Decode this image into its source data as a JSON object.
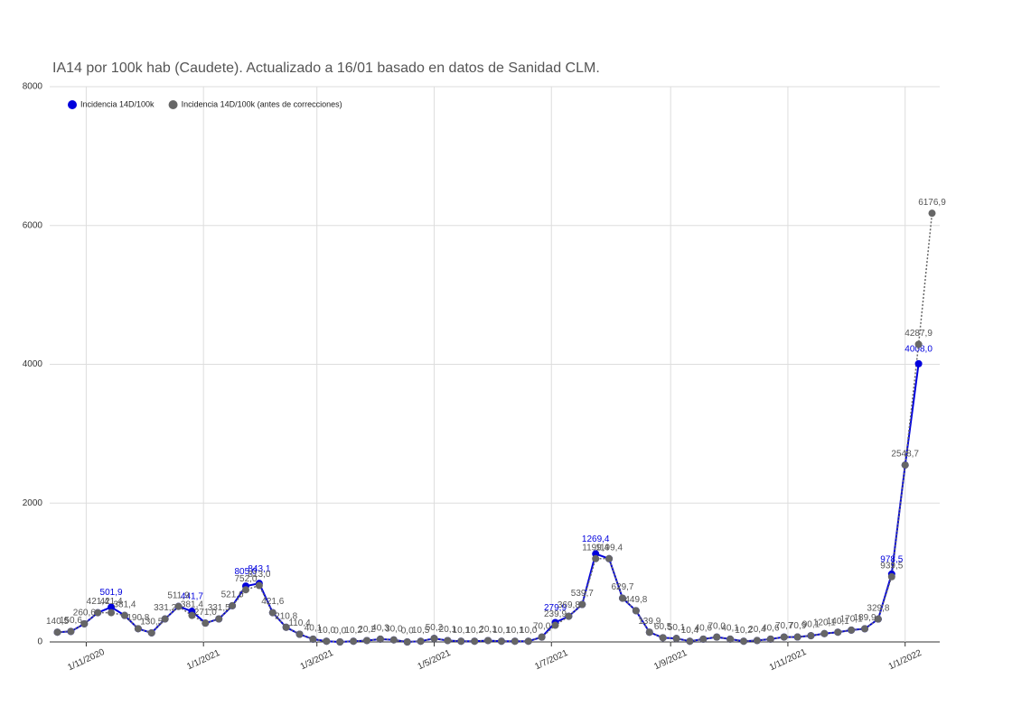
{
  "chart_data": {
    "type": "line",
    "title": "IA14 por 100k hab (Caudete). Actualizado a 16/01 basado en datos de Sanidad CLM.",
    "x": [
      "2020-10-17",
      "2020-10-24",
      "2020-10-31",
      "2020-11-07",
      "2020-11-14",
      "2020-11-21",
      "2020-11-28",
      "2020-12-05",
      "2020-12-12",
      "2020-12-19",
      "2020-12-26",
      "2021-01-02",
      "2021-01-09",
      "2021-01-16",
      "2021-01-23",
      "2021-01-30",
      "2021-02-06",
      "2021-02-13",
      "2021-02-20",
      "2021-02-27",
      "2021-03-06",
      "2021-03-13",
      "2021-03-20",
      "2021-03-27",
      "2021-04-03",
      "2021-04-10",
      "2021-04-17",
      "2021-04-24",
      "2021-05-01",
      "2021-05-08",
      "2021-05-15",
      "2021-05-22",
      "2021-05-29",
      "2021-06-05",
      "2021-06-12",
      "2021-06-19",
      "2021-06-26",
      "2021-07-03",
      "2021-07-10",
      "2021-07-17",
      "2021-07-24",
      "2021-07-31",
      "2021-08-07",
      "2021-08-14",
      "2021-08-21",
      "2021-08-28",
      "2021-09-04",
      "2021-09-11",
      "2021-09-18",
      "2021-09-25",
      "2021-10-02",
      "2021-10-09",
      "2021-10-16",
      "2021-10-23",
      "2021-10-30",
      "2021-11-06",
      "2021-11-13",
      "2021-11-20",
      "2021-11-27",
      "2021-12-04",
      "2021-12-11",
      "2021-12-18",
      "2021-12-25",
      "2022-01-01",
      "2022-01-08",
      "2022-01-15"
    ],
    "series": [
      {
        "name": "Incidencia 14D/100k",
        "color": "#0000dd",
        "dashed": false,
        "values": [
          140.5,
          150.6,
          260.6,
          421.4,
          501.9,
          381.4,
          190.8,
          130.5,
          331.2,
          511.9,
          441.7,
          271.0,
          331.5,
          521.6,
          805.0,
          843.1,
          421.6,
          210.8,
          110.4,
          40.1,
          10.0,
          0.0,
          10.2,
          20.2,
          40.3,
          30.0,
          0.0,
          10.5,
          50.2,
          20.1,
          10.1,
          10.2,
          20.1,
          10.1,
          10.1,
          10.0,
          70.0,
          279.9,
          369.8,
          539.7,
          1269.4,
          1199.4,
          629.7,
          449.8,
          139.9,
          60.5,
          50.1,
          10.4,
          40.6,
          70.0,
          40.1,
          10.2,
          20.4,
          40.6,
          70.7,
          70.9,
          90.1,
          120.1,
          140.1,
          170.1,
          189.9,
          329.8,
          978.5,
          2548.7,
          4008.0,
          null
        ],
        "value_labels": [
          null,
          null,
          null,
          null,
          "501,9",
          null,
          null,
          null,
          null,
          null,
          "441,7",
          null,
          null,
          null,
          "805,0",
          "843,1",
          null,
          null,
          null,
          null,
          null,
          null,
          null,
          null,
          null,
          null,
          null,
          null,
          null,
          null,
          null,
          null,
          null,
          null,
          null,
          null,
          null,
          "279,9",
          null,
          null,
          "1269,4",
          null,
          null,
          null,
          null,
          null,
          null,
          null,
          null,
          null,
          null,
          null,
          null,
          null,
          null,
          null,
          null,
          null,
          null,
          null,
          null,
          null,
          "978,5",
          null,
          "4008,0",
          null
        ]
      },
      {
        "name": "Incidencia 14D/100k (antes de correcciones)",
        "color": "#666666",
        "dashed": true,
        "values": [
          140.5,
          150.6,
          260.6,
          421.4,
          421.4,
          381.4,
          190.8,
          130.5,
          331.2,
          511.9,
          381.4,
          271.0,
          331.5,
          521.6,
          752.0,
          813.0,
          421.6,
          210.8,
          110.4,
          40.1,
          10.0,
          0.0,
          10.2,
          20.2,
          40.3,
          30.0,
          0.0,
          10.5,
          50.2,
          20.1,
          10.1,
          10.2,
          20.1,
          10.1,
          10.1,
          10.0,
          70.0,
          239.9,
          369.8,
          539.7,
          1199.4,
          1199.4,
          629.7,
          449.8,
          139.9,
          60.5,
          50.1,
          10.4,
          40.6,
          70.0,
          40.1,
          10.2,
          20.4,
          40.6,
          70.7,
          70.9,
          90.1,
          120.1,
          140.1,
          170.1,
          189.9,
          329.8,
          939.5,
          2548.7,
          4287.9,
          6176.9
        ],
        "value_labels": [
          "140,5",
          "150,6",
          "260,6",
          "421,4",
          "421,4",
          "381,4",
          "190,8",
          "130,5",
          "331,2",
          "511,9",
          "381,4",
          "271,0",
          "331,5",
          "521,6",
          "752,0",
          "813,0",
          "421,6",
          "210,8",
          "110,4",
          "40,1",
          "10,0",
          "0,0",
          "10,2",
          "20,2",
          "40,3",
          "30,0",
          "0,0",
          "10,5",
          "50,2",
          "20,1",
          "10,1",
          "10,2",
          "20,1",
          "10,1",
          "10,1",
          "10,0",
          "70,0",
          "239,9",
          "369,8",
          "539,7",
          "1199,4",
          "1199,4",
          "629,7",
          "449,8",
          "139,9",
          "60,5",
          "50,1",
          "10,4",
          "40,6",
          "70,0",
          "40,1",
          "10,2",
          "20,4",
          "40,6",
          "70,7",
          "70,9",
          "90,1",
          "120,1",
          "140,1",
          "170,1",
          "189,9",
          "329,8",
          "939,5",
          "2548,7",
          "4287,9",
          "6176,9"
        ]
      }
    ],
    "xlim": [
      "2020-10-13",
      "2022-01-19"
    ],
    "xticks": [
      {
        "value": "2020-11-01",
        "label": "1/11/2020"
      },
      {
        "value": "2021-01-01",
        "label": "1/1/2021"
      },
      {
        "value": "2021-03-01",
        "label": "1/3/2021"
      },
      {
        "value": "2021-05-01",
        "label": "1/5/2021"
      },
      {
        "value": "2021-07-01",
        "label": "1/7/2021"
      },
      {
        "value": "2021-09-01",
        "label": "1/9/2021"
      },
      {
        "value": "2021-11-01",
        "label": "1/11/2021"
      },
      {
        "value": "2022-01-01",
        "label": "1/1/2022"
      }
    ],
    "ylim": [
      0,
      8000
    ],
    "yticks": [
      0,
      2000,
      4000,
      6000,
      8000
    ],
    "grid": true,
    "legend": "top-left"
  }
}
